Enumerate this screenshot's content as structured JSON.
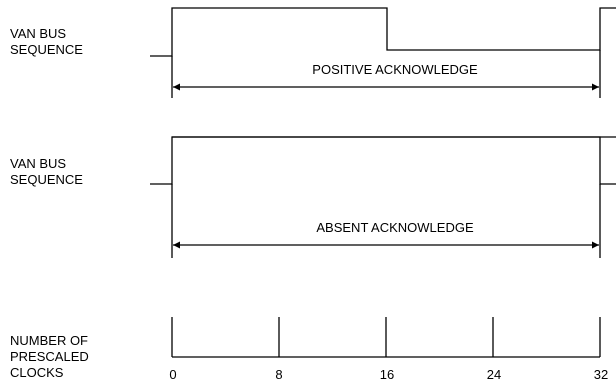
{
  "diagram": {
    "row1": {
      "label_line1": "VAN BUS",
      "label_line2": "SEQUENCE",
      "caption": "POSITIVE ACKNOWLEDGE"
    },
    "row2": {
      "label_line1": "VAN BUS",
      "label_line2": "SEQUENCE",
      "caption": "ABSENT ACKNOWLEDGE"
    },
    "row3": {
      "label_line1": "NUMBER OF",
      "label_line2": "PRESCALED",
      "label_line3": "CLOCKS",
      "ticks": [
        "0",
        "8",
        "16",
        "24",
        "32"
      ]
    }
  }
}
